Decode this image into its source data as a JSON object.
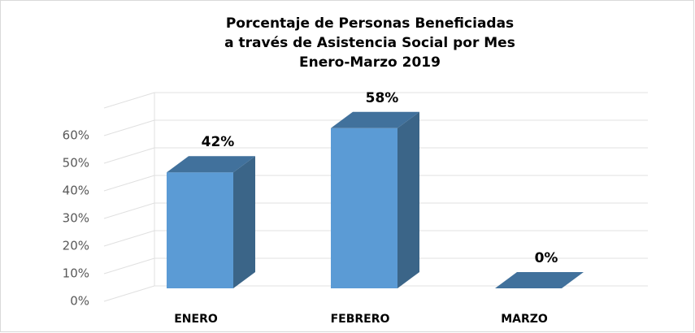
{
  "chart_data": {
    "type": "bar3d",
    "title": [
      "Porcentaje de Personas Beneficiadas",
      "a través de Asistencia Social por Mes",
      "Enero-Marzo 2019"
    ],
    "categories": [
      "ENERO",
      "FEBRERO",
      "MARZO"
    ],
    "values": [
      42,
      58,
      0
    ],
    "value_labels": [
      "42%",
      "58%",
      "0%"
    ],
    "color": "#5b9bd5",
    "ylim": [
      0,
      70
    ],
    "yticks": [
      {
        "value": 0,
        "label": "0%"
      },
      {
        "value": 10,
        "label": "10%"
      },
      {
        "value": 20,
        "label": "20%"
      },
      {
        "value": 30,
        "label": "30%"
      },
      {
        "value": 40,
        "label": "40%"
      },
      {
        "value": 50,
        "label": "50%"
      },
      {
        "value": 60,
        "label": "60%"
      }
    ],
    "grid": true
  }
}
